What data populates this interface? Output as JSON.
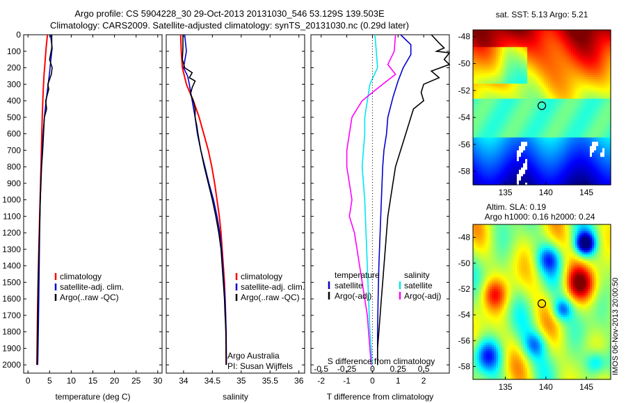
{
  "title": {
    "line1": "Argo profile: CS 5904228_30 29-Oct-2013 20131030_546 53.129S 139.503E",
    "line2": "Climatology: CARS2009. Satellite-adjusted climatology: synTS_20131030.nc (0.29d later)"
  },
  "colors": {
    "climatology": "#ff0000",
    "satellite": "#0000cc",
    "argo": "#000000",
    "argo_salinity": "#ff00ff",
    "satellite_salinity": "#00e5ee"
  },
  "stamp": "IMOS 06-Nov-2013 20:00:50",
  "chart_data": [
    {
      "type": "line",
      "name": "temperature",
      "xlabel": "temperature (deg C)",
      "ylabel": "",
      "xlim": [
        -1,
        31
      ],
      "ylim": [
        2050,
        0
      ],
      "xticks": [
        0,
        5,
        10,
        15,
        20,
        25,
        30
      ],
      "yticks": [
        0,
        100,
        200,
        300,
        400,
        500,
        600,
        700,
        800,
        900,
        1000,
        1100,
        1200,
        1300,
        1400,
        1500,
        1600,
        1700,
        1800,
        1900,
        2000
      ],
      "legend": [
        "climatology",
        "satellite-adj. clim.",
        "Argo(..raw -QC)"
      ],
      "series": [
        {
          "key": "climatology",
          "color": "#ff0000",
          "points": [
            [
              4.5,
              0
            ],
            [
              4.2,
              80
            ],
            [
              3.9,
              180
            ],
            [
              3.7,
              250
            ],
            [
              3.5,
              350
            ],
            [
              3.3,
              500
            ],
            [
              3.1,
              700
            ],
            [
              2.9,
              900
            ],
            [
              2.7,
              1100
            ],
            [
              2.5,
              1300
            ],
            [
              2.35,
              1500
            ],
            [
              2.2,
              1700
            ],
            [
              2.1,
              1900
            ],
            [
              2.05,
              2000
            ]
          ]
        },
        {
          "key": "satellite",
          "color": "#0000cc",
          "points": [
            [
              5.2,
              0
            ],
            [
              5.6,
              80
            ],
            [
              5.3,
              150
            ],
            [
              4.9,
              250
            ],
            [
              4.2,
              400
            ],
            [
              3.8,
              500
            ],
            [
              3.5,
              600
            ],
            [
              3.3,
              700
            ],
            [
              3.1,
              800
            ],
            [
              2.95,
              900
            ],
            [
              2.85,
              1000
            ],
            [
              2.7,
              1200
            ],
            [
              2.6,
              1400
            ],
            [
              2.5,
              1600
            ],
            [
              2.4,
              1800
            ],
            [
              2.3,
              1950
            ],
            [
              2.25,
              2000
            ]
          ]
        },
        {
          "key": "argo",
          "color": "#000000",
          "points": [
            [
              5.5,
              0
            ],
            [
              5.5,
              80
            ],
            [
              5.0,
              150
            ],
            [
              5.6,
              200
            ],
            [
              5.4,
              240
            ],
            [
              4.6,
              300
            ],
            [
              4.8,
              330
            ],
            [
              4.1,
              400
            ],
            [
              4.3,
              450
            ],
            [
              3.8,
              500
            ],
            [
              3.6,
              600
            ],
            [
              3.4,
              700
            ],
            [
              3.15,
              800
            ],
            [
              3.0,
              900
            ],
            [
              2.85,
              1000
            ],
            [
              2.75,
              1100
            ],
            [
              2.65,
              1200
            ],
            [
              2.55,
              1300
            ],
            [
              2.45,
              1400
            ],
            [
              2.35,
              1500
            ],
            [
              2.3,
              1600
            ],
            [
              2.25,
              1700
            ],
            [
              2.2,
              1800
            ],
            [
              2.15,
              1900
            ],
            [
              2.1,
              2000
            ]
          ]
        }
      ]
    },
    {
      "type": "line",
      "name": "salinity",
      "xlabel": "salinity",
      "xlim": [
        33.7,
        36.1
      ],
      "ylim": [
        2050,
        0
      ],
      "xticks": [
        34,
        34.5,
        35,
        35.5,
        36
      ],
      "legend": [
        "climatology",
        "satellite-adj. clim.",
        "Argo(..raw -QC)"
      ],
      "annotation": [
        "Argo Australia",
        "PI: Susan Wijffels"
      ],
      "series": [
        {
          "key": "climatology",
          "color": "#ff0000",
          "points": [
            [
              33.95,
              0
            ],
            [
              33.96,
              100
            ],
            [
              33.98,
              200
            ],
            [
              34.05,
              300
            ],
            [
              34.17,
              400
            ],
            [
              34.27,
              500
            ],
            [
              34.35,
              600
            ],
            [
              34.43,
              700
            ],
            [
              34.49,
              800
            ],
            [
              34.54,
              900
            ],
            [
              34.58,
              1000
            ],
            [
              34.62,
              1100
            ],
            [
              34.65,
              1200
            ],
            [
              34.67,
              1300
            ],
            [
              34.69,
              1400
            ],
            [
              34.71,
              1500
            ],
            [
              34.72,
              1600
            ],
            [
              34.73,
              1700
            ],
            [
              34.735,
              1800
            ],
            [
              34.74,
              2000
            ]
          ]
        },
        {
          "key": "satellite",
          "color": "#0000cc",
          "points": [
            [
              34.02,
              0
            ],
            [
              34.05,
              100
            ],
            [
              34.0,
              200
            ],
            [
              34.07,
              250
            ],
            [
              34.1,
              300
            ],
            [
              34.15,
              400
            ],
            [
              34.2,
              500
            ],
            [
              34.24,
              600
            ],
            [
              34.3,
              700
            ],
            [
              34.37,
              800
            ],
            [
              34.44,
              900
            ],
            [
              34.52,
              1000
            ],
            [
              34.58,
              1100
            ],
            [
              34.63,
              1200
            ],
            [
              34.66,
              1300
            ],
            [
              34.68,
              1400
            ],
            [
              34.7,
              1500
            ],
            [
              34.72,
              1600
            ],
            [
              34.73,
              1700
            ],
            [
              34.74,
              1800
            ],
            [
              34.745,
              2000
            ]
          ]
        },
        {
          "key": "argo",
          "color": "#000000",
          "points": [
            [
              33.99,
              0
            ],
            [
              33.99,
              80
            ],
            [
              33.98,
              150
            ],
            [
              34.02,
              200
            ],
            [
              34.15,
              230
            ],
            [
              34.1,
              260
            ],
            [
              34.2,
              280
            ],
            [
              34.15,
              320
            ],
            [
              34.12,
              360
            ],
            [
              34.17,
              400
            ],
            [
              34.2,
              450
            ],
            [
              34.2,
              500
            ],
            [
              34.23,
              550
            ],
            [
              34.25,
              600
            ],
            [
              34.3,
              700
            ],
            [
              34.36,
              800
            ],
            [
              34.43,
              900
            ],
            [
              34.5,
              1000
            ],
            [
              34.56,
              1100
            ],
            [
              34.61,
              1200
            ],
            [
              34.65,
              1300
            ],
            [
              34.67,
              1400
            ],
            [
              34.69,
              1500
            ],
            [
              34.71,
              1600
            ],
            [
              34.72,
              1700
            ],
            [
              34.735,
              1800
            ],
            [
              34.74,
              2000
            ]
          ]
        }
      ]
    },
    {
      "type": "line",
      "name": "difference",
      "xlabel": "T difference from climatology",
      "xlabel_top": "S difference from climatology",
      "xlim": [
        -2.4,
        3.0
      ],
      "ylim": [
        2050,
        0
      ],
      "xticks": [
        -2,
        -1,
        0,
        1,
        2
      ],
      "xticks_s": [
        {
          "label": "-0.5",
          "x": -2.0
        },
        {
          "label": "-0.25",
          "x": -1.0
        },
        {
          "label": "0",
          "x": 0.0
        },
        {
          "label": "0.25",
          "x": 1.0
        },
        {
          "label": "0.5",
          "x": 2.0
        }
      ],
      "legend": [
        {
          "head": "temperature",
          "items": [
            "satellite",
            "Argo(-adj)"
          ]
        },
        {
          "head": "salinity",
          "items": [
            "satellite",
            "Argo(-adj)"
          ]
        }
      ],
      "series": [
        {
          "key": "t_satellite",
          "color": "#0000cc",
          "points": [
            [
              1.1,
              0
            ],
            [
              1.5,
              60
            ],
            [
              1.5,
              120
            ],
            [
              1.2,
              200
            ],
            [
              1.0,
              280
            ],
            [
              0.8,
              380
            ],
            [
              0.6,
              500
            ],
            [
              0.55,
              600
            ],
            [
              0.45,
              700
            ],
            [
              0.4,
              800
            ],
            [
              0.35,
              1000
            ],
            [
              0.3,
              1200
            ],
            [
              0.25,
              1400
            ],
            [
              0.22,
              1600
            ],
            [
              0.2,
              1800
            ],
            [
              0.2,
              2000
            ]
          ]
        },
        {
          "key": "t_argo",
          "color": "#000000",
          "points": [
            [
              2.3,
              0
            ],
            [
              2.6,
              50
            ],
            [
              2.8,
              80
            ],
            [
              2.5,
              100
            ],
            [
              3.0,
              110
            ],
            [
              2.8,
              150
            ],
            [
              3.0,
              180
            ],
            [
              2.3,
              220
            ],
            [
              2.6,
              260
            ],
            [
              2.0,
              300
            ],
            [
              1.9,
              350
            ],
            [
              2.0,
              400
            ],
            [
              1.6,
              450
            ],
            [
              1.5,
              500
            ],
            [
              1.3,
              600
            ],
            [
              1.1,
              700
            ],
            [
              0.9,
              800
            ],
            [
              0.8,
              900
            ],
            [
              0.7,
              1000
            ],
            [
              0.6,
              1100
            ],
            [
              0.55,
              1200
            ],
            [
              0.5,
              1300
            ],
            [
              0.45,
              1400
            ],
            [
              0.4,
              1500
            ],
            [
              0.35,
              1600
            ],
            [
              0.3,
              1700
            ],
            [
              0.25,
              1800
            ],
            [
              0.2,
              1900
            ],
            [
              0.2,
              2000
            ]
          ]
        },
        {
          "key": "s_satellite",
          "color": "#00e5ee",
          "points": [
            [
              0.1,
              0
            ],
            [
              0.15,
              100
            ],
            [
              0.2,
              200
            ],
            [
              -0.1,
              300
            ],
            [
              -0.2,
              400
            ],
            [
              -0.3,
              500
            ],
            [
              -0.3,
              600
            ],
            [
              -0.35,
              700
            ],
            [
              -0.4,
              800
            ],
            [
              -0.35,
              900
            ],
            [
              -0.3,
              1000
            ],
            [
              -0.25,
              1200
            ],
            [
              -0.2,
              1400
            ],
            [
              -0.15,
              1600
            ],
            [
              -0.1,
              1800
            ],
            [
              0.0,
              2000
            ]
          ]
        },
        {
          "key": "s_argo",
          "color": "#ff00ff",
          "points": [
            [
              0.9,
              0
            ],
            [
              0.85,
              100
            ],
            [
              0.6,
              180
            ],
            [
              0.9,
              240
            ],
            [
              0.4,
              300
            ],
            [
              0.0,
              350
            ],
            [
              -0.4,
              400
            ],
            [
              -0.6,
              450
            ],
            [
              -0.8,
              500
            ],
            [
              -0.9,
              600
            ],
            [
              -1.0,
              700
            ],
            [
              -1.0,
              800
            ],
            [
              -0.9,
              900
            ],
            [
              -0.8,
              1000
            ],
            [
              -0.9,
              1100
            ],
            [
              -0.7,
              1200
            ],
            [
              -0.6,
              1300
            ],
            [
              -0.5,
              1400
            ],
            [
              -0.4,
              1500
            ],
            [
              -0.3,
              1600
            ],
            [
              -0.2,
              1700
            ],
            [
              -0.15,
              1800
            ],
            [
              -0.1,
              1900
            ],
            [
              -0.05,
              2000
            ]
          ]
        }
      ]
    },
    {
      "type": "heatmap",
      "name": "sst-map",
      "title": "sat. SST: 5.13  Argo: 5.21",
      "xlim": [
        131,
        148
      ],
      "ylim": [
        -59,
        -47.5
      ],
      "xticks": [
        135,
        140,
        145
      ],
      "yticks": [
        -48,
        -50,
        -52,
        -54,
        -56,
        -58
      ],
      "marker": {
        "lon": 139.5,
        "lat": -53.13
      }
    },
    {
      "type": "heatmap",
      "name": "sla-map",
      "title": "Altim. SLA: 0.19",
      "subtitle": "Argo h1000: 0.16  h2000: 0.24",
      "xlim": [
        131,
        148
      ],
      "ylim": [
        -59,
        -47
      ],
      "xticks": [
        135,
        140,
        145
      ],
      "yticks": [
        -48,
        -50,
        -52,
        -54,
        -56,
        -58
      ],
      "marker": {
        "lon": 139.5,
        "lat": -53.13
      }
    }
  ]
}
